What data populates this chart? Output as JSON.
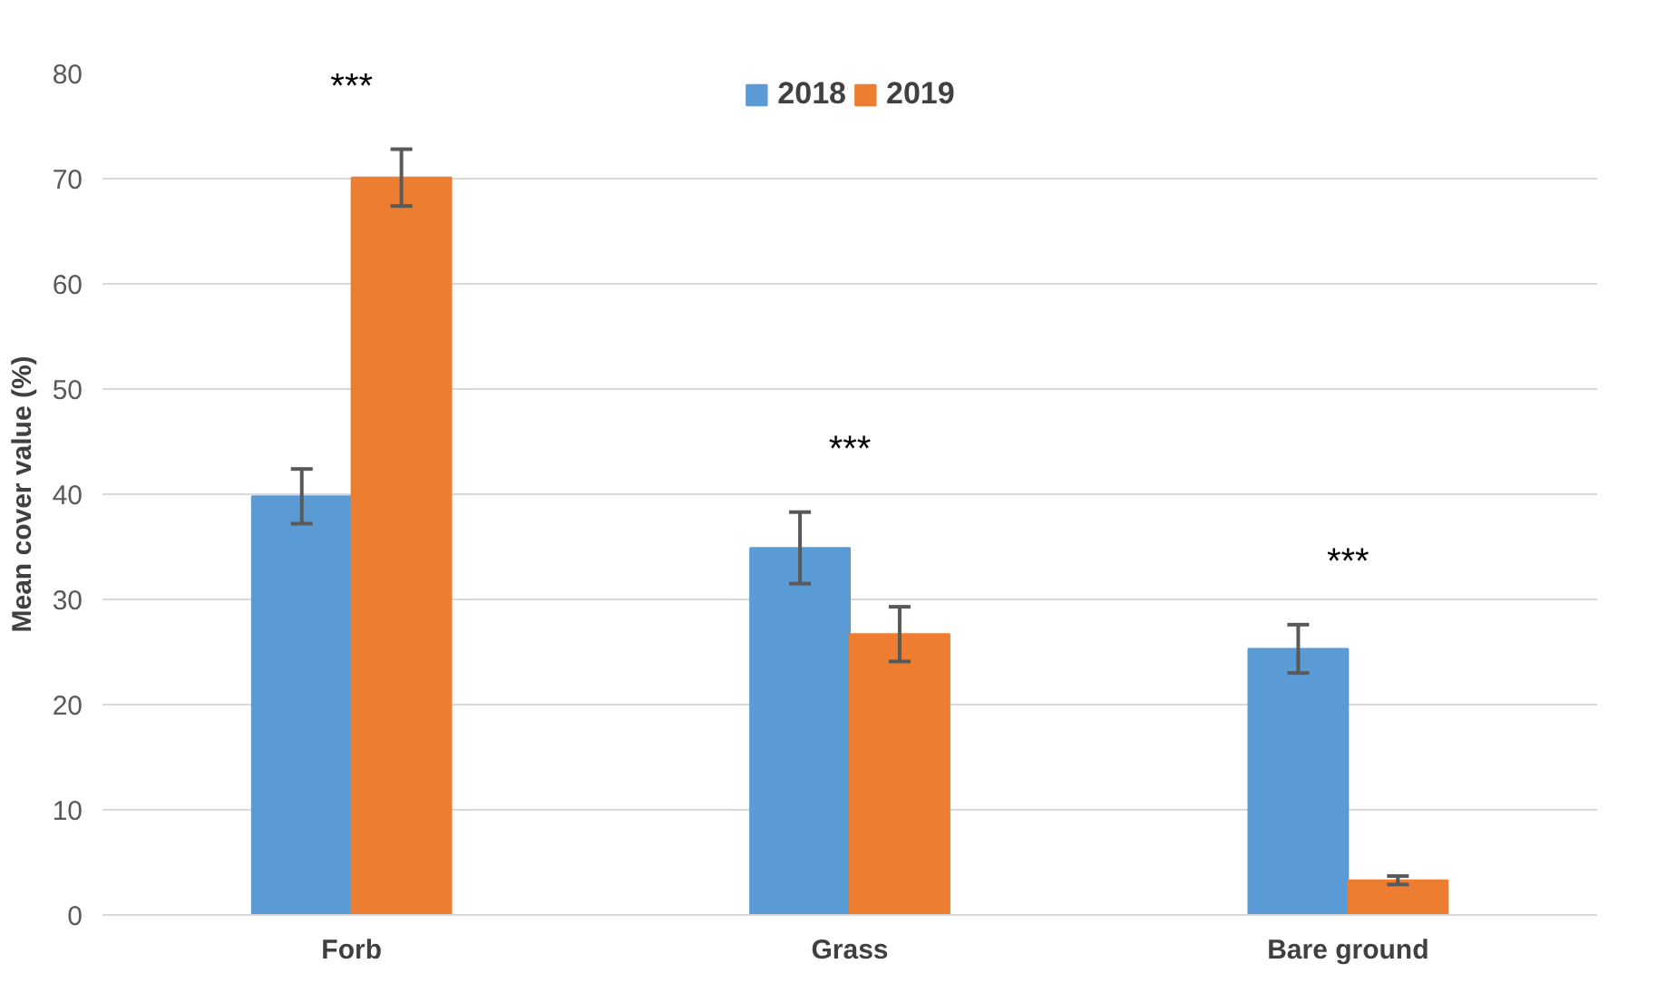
{
  "chart_data": {
    "type": "bar",
    "ylabel": "Mean cover value (%)",
    "categories": [
      "Forb",
      "Grass",
      "Bare ground"
    ],
    "series": [
      {
        "name": "2018",
        "color": "#5b9bd5",
        "values": [
          39.8,
          34.9,
          25.3
        ],
        "errors": [
          2.6,
          3.4,
          2.3
        ]
      },
      {
        "name": "2019",
        "color": "#ed7d31",
        "values": [
          70.1,
          26.7,
          3.3
        ],
        "errors": [
          2.7,
          2.6,
          0.4
        ]
      }
    ],
    "ylim": [
      0,
      80
    ],
    "yticks": [
      0,
      10,
      20,
      30,
      40,
      50,
      60,
      70,
      80
    ],
    "grid": "y",
    "legend": "top",
    "annotations": [
      "***",
      "***",
      "***"
    ]
  }
}
